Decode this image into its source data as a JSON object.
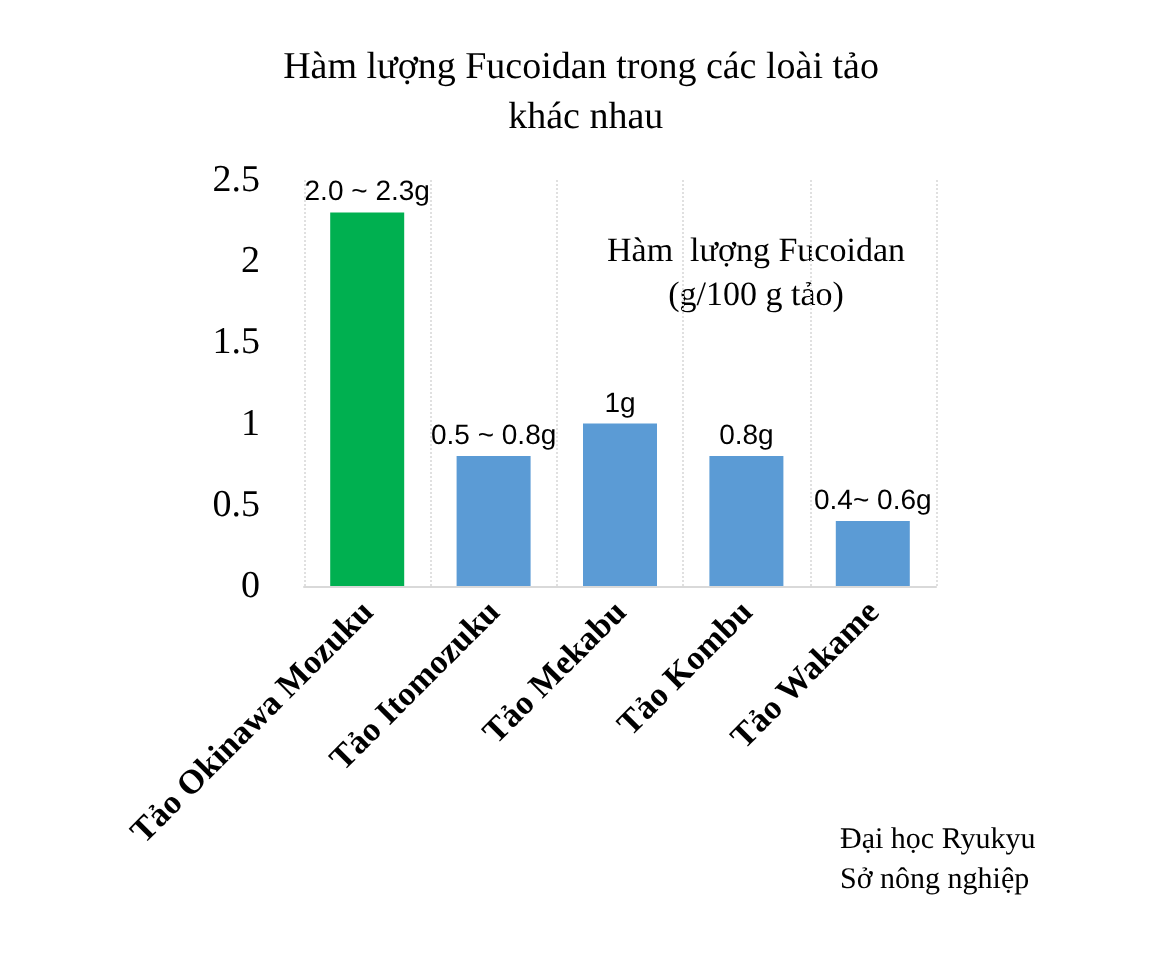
{
  "chart_data": {
    "type": "bar",
    "title": "Hàm lượng Fucoidan trong các loài tảo khác nhau",
    "categories": [
      "Tảo Okinawa Mozuku",
      "Tảo Itomozuku",
      "Tảo Mekabu",
      "Tảo Kombu",
      "Tảo Wakame"
    ],
    "values": [
      2.3,
      0.8,
      1,
      0.8,
      0.4
    ],
    "colors": [
      "#00b050",
      "#5b9bd5",
      "#5b9bd5",
      "#5b9bd5",
      "#5b9bd5"
    ],
    "value_labels": [
      "2.0 ~ 2.3g",
      "0.5 ~ 0.8g",
      "1g",
      "0.8g",
      "0.4~ 0.6g"
    ],
    "ylim": [
      0,
      2.5
    ],
    "yticks": [
      0,
      0.5,
      1,
      1.5,
      2,
      2.5
    ],
    "grid": "x",
    "annotations": [
      "Hàm  lượng Fucoidan\n(g/100 g tảo)",
      "Đại học Ryukyu\nSở nông nghiệp"
    ]
  }
}
